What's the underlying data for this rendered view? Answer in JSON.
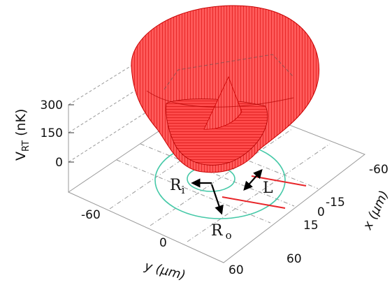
{
  "figure": {
    "type": "3d-surface-potential",
    "z_axis": {
      "label_main": "V",
      "label_sub": "RT",
      "label_unit": " (nK)",
      "ticks": [
        "300",
        "150",
        "0"
      ]
    },
    "y_axis": {
      "label": "y (μm)",
      "ticks": [
        "-60",
        "0",
        "60"
      ]
    },
    "x_axis": {
      "label": "x (μm)",
      "ticks": [
        "-60",
        "-15",
        "0",
        "15",
        "60"
      ]
    },
    "annotations": {
      "inner_radius": {
        "main": "R",
        "sub": "i"
      },
      "outer_radius": {
        "main": "R",
        "sub": "o"
      },
      "length": "L"
    },
    "colors": {
      "surface": "#ff2a2a",
      "surface_dark": "#c80000",
      "rings": "#46c9a8",
      "guide_lines": "#e8262a",
      "grid": "#9a9a9a",
      "arrows": "#000000"
    }
  }
}
